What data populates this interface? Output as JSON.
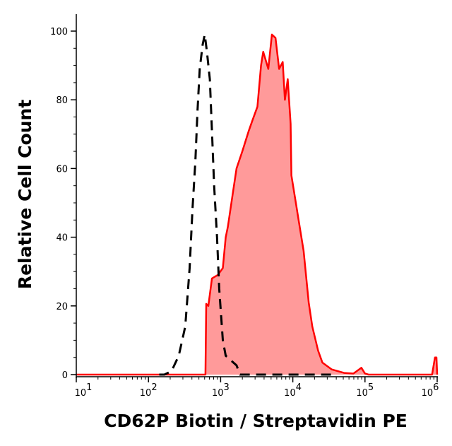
{
  "chart_data": {
    "type": "area",
    "title": "",
    "xlabel": "CD62P Biotin / Streptavidin PE",
    "ylabel": "Relative Cell Count",
    "x_scale": "log",
    "xlim": [
      10,
      1000000
    ],
    "ylim": [
      0,
      100
    ],
    "x_ticks": [
      {
        "value": 10,
        "base": "10",
        "exp": "1"
      },
      {
        "value": 100,
        "base": "10",
        "exp": "2"
      },
      {
        "value": 1000,
        "base": "10",
        "exp": "3"
      },
      {
        "value": 10000,
        "base": "10",
        "exp": "4"
      },
      {
        "value": 100000,
        "base": "10",
        "exp": "5"
      },
      {
        "value": 1000000,
        "base": "10",
        "exp": "6"
      }
    ],
    "y_ticks": [
      "0",
      "20",
      "40",
      "60",
      "80",
      "100"
    ],
    "grid": false,
    "legend": "none",
    "series": [
      {
        "style": "filled-solid",
        "color": "#ff0000",
        "fill": "#ff9a9a",
        "log10_x": [
          1.0,
          2.79,
          2.8,
          2.83,
          2.88,
          2.96,
          3.03,
          3.07,
          3.1,
          3.17,
          3.22,
          3.3,
          3.39,
          3.44,
          3.51,
          3.56,
          3.59,
          3.66,
          3.71,
          3.76,
          3.81,
          3.86,
          3.89,
          3.93,
          3.97,
          3.98,
          4.05,
          4.08,
          4.15,
          4.22,
          4.27,
          4.35,
          4.41,
          4.54,
          4.71,
          4.84,
          4.95,
          5.0,
          5.05,
          5.13,
          5.93,
          5.97,
          5.99,
          6.0
        ],
        "y": [
          0,
          0,
          20.6,
          20,
          28,
          29,
          31,
          40,
          43,
          53,
          60,
          65,
          71,
          74,
          78,
          90,
          94,
          89,
          99,
          98,
          89,
          91,
          80,
          86,
          73,
          58,
          49,
          45,
          36,
          21,
          14,
          7,
          3.5,
          1.5,
          0.5,
          0.3,
          2,
          0.3,
          0,
          0,
          0,
          5,
          5,
          0
        ]
      },
      {
        "style": "dashed",
        "color": "#000000",
        "log10_x": [
          2.15,
          2.22,
          2.32,
          2.42,
          2.51,
          2.57,
          2.61,
          2.65,
          2.68,
          2.71,
          2.75,
          2.78,
          2.81,
          2.85,
          2.88,
          2.91,
          2.95,
          2.98,
          3.03,
          3.07,
          3.22,
          3.27,
          4.54
        ],
        "y": [
          0,
          0,
          1,
          5.5,
          14,
          31,
          48,
          62,
          77,
          89,
          96,
          99,
          94,
          86,
          71,
          55,
          40,
          25,
          10,
          5.5,
          2.7,
          0,
          0
        ]
      }
    ]
  }
}
